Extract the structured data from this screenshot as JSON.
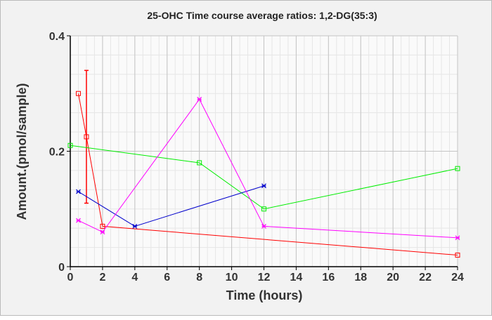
{
  "chart_data": {
    "type": "line",
    "title": "25-OHC Time course average ratios: 1,2-DG(35:3)",
    "xlabel": "Time (hours)",
    "ylabel": "Amount.(pmol/sample)",
    "xlim": [
      0,
      24
    ],
    "ylim": [
      0,
      0.4
    ],
    "xticks": [
      "0",
      "2",
      "4",
      "6",
      "8",
      "10",
      "12",
      "14",
      "16",
      "18",
      "20",
      "22",
      "24"
    ],
    "yticks": [
      "0",
      "0.2",
      "0.4"
    ],
    "grid": true,
    "series": [
      {
        "name": "red",
        "color": "#ff0000",
        "marker": "square",
        "x": [
          0.5,
          1,
          2,
          24
        ],
        "y": [
          0.3,
          0.225,
          0.07,
          0.02
        ],
        "error": [
          null,
          [
            0.11,
            0.34
          ],
          null,
          null
        ]
      },
      {
        "name": "green",
        "color": "#00ee00",
        "marker": "square",
        "x": [
          0,
          8,
          12,
          24
        ],
        "y": [
          0.21,
          0.18,
          0.1,
          0.17
        ]
      },
      {
        "name": "blue",
        "color": "#0000cc",
        "marker": "cross",
        "x": [
          0.5,
          4,
          12
        ],
        "y": [
          0.13,
          0.07,
          0.14
        ]
      },
      {
        "name": "magenta",
        "color": "#ff00ff",
        "marker": "cross",
        "x": [
          0.5,
          2,
          8,
          12,
          24
        ],
        "y": [
          0.08,
          0.06,
          0.29,
          0.07,
          0.05
        ]
      }
    ]
  }
}
